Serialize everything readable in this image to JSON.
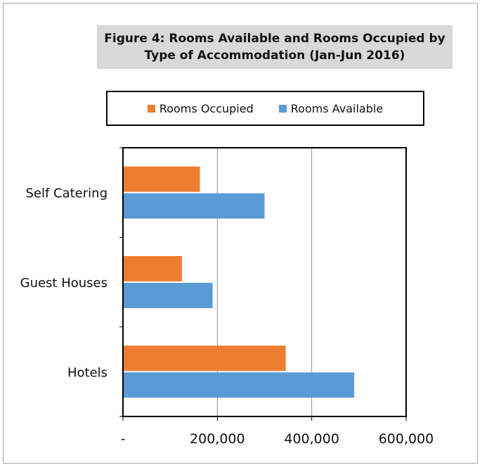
{
  "chart_data": {
    "type": "bar",
    "orientation": "horizontal",
    "title": "Figure 4: Rooms Available and Rooms Occupied by Type of Accommodation (Jan-Jun 2016)",
    "categories": [
      "Hotels",
      "Guest Houses",
      "Self Catering"
    ],
    "series": [
      {
        "name": "Rooms Available",
        "color": "#5b9bd5",
        "values": [
          490000,
          190000,
          300000
        ]
      },
      {
        "name": "Rooms Occupied",
        "color": "#ed7d31",
        "values": [
          345000,
          125000,
          163000
        ]
      }
    ],
    "legend": {
      "position": "top",
      "order": [
        "Rooms Occupied",
        "Rooms Available"
      ]
    },
    "x_axis": {
      "min": 0,
      "max": 600000,
      "ticks": [
        0,
        200000,
        400000,
        600000
      ],
      "tick_labels": [
        "-",
        "200,000",
        "400,000",
        "600,000"
      ]
    },
    "grid": "vertical major gridlines"
  }
}
